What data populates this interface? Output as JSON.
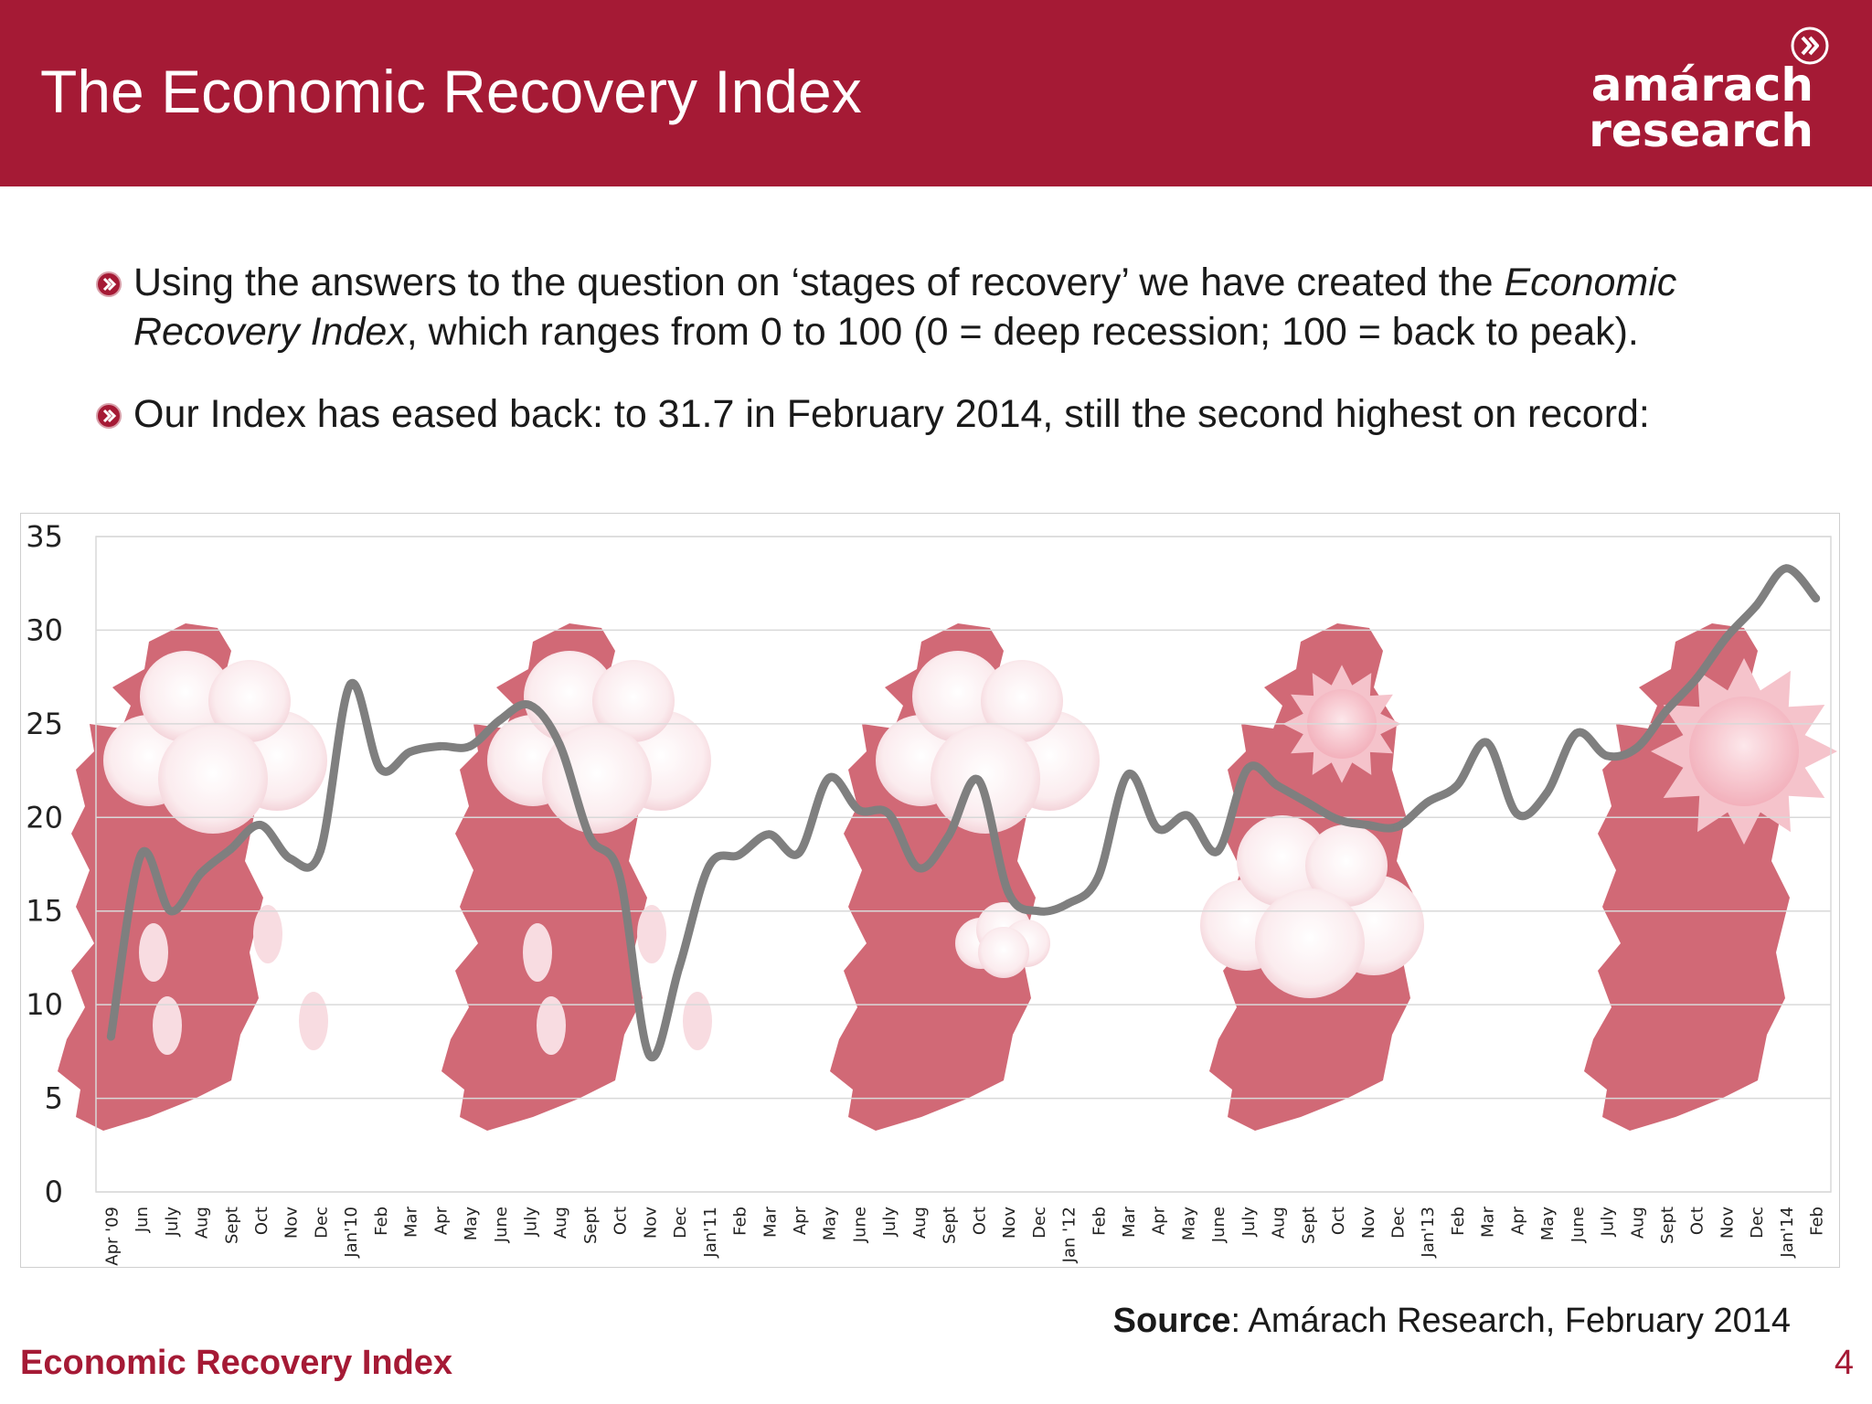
{
  "slide": {
    "title": "The Economic Recovery Index",
    "logo_line1": "amárach",
    "logo_line2": "research",
    "bullets": [
      {
        "parts": [
          {
            "text": "Using the answers to the question on ‘stages of recovery’ we have created the ",
            "italic": false
          },
          {
            "text": "Economic Recovery Index",
            "italic": true
          },
          {
            "text": ", which ranges from 0 to 100 (0 = deep recession; 100 = back to peak).",
            "italic": false
          }
        ]
      },
      {
        "parts": [
          {
            "text": "Our Index has eased back: to 31.7 in February 2014, still the second highest on record:",
            "italic": false
          }
        ]
      }
    ],
    "source_label": "Source",
    "source_text": ": Amárach Research, February 2014",
    "footer_title": "Economic Recovery Index",
    "page_number": "4"
  },
  "colors": {
    "brand": "#a51a35",
    "line": "#7f7f7f",
    "map": "#c9505f",
    "grid": "#d9d9d9"
  },
  "chart_data": {
    "type": "line",
    "title": "",
    "xlabel": "",
    "ylabel": "",
    "ylim": [
      0,
      35
    ],
    "yticks": [
      0,
      5,
      10,
      15,
      20,
      25,
      30,
      35
    ],
    "grid": true,
    "legend": "none",
    "background_icons": [
      "ireland-rain-cloud",
      "ireland-rain-cloud",
      "ireland-cloud",
      "ireland-sun-cloud",
      "ireland-sun"
    ],
    "categories": [
      "Apr '09",
      "Jun",
      "July",
      "Aug",
      "Sept",
      "Oct",
      "Nov",
      "Dec",
      "Jan'10",
      "Feb",
      "Mar",
      "Apr",
      "May",
      "June",
      "July",
      "Aug",
      "Sept",
      "Oct",
      "Nov",
      "Dec",
      "Jan'11",
      "Feb",
      "Mar",
      "Apr",
      "May",
      "June",
      "July",
      "Aug",
      "Sept",
      "Oct",
      "Nov",
      "Dec",
      "Jan '12",
      "Feb",
      "Mar",
      "Apr",
      "May",
      "June",
      "July",
      "Aug",
      "Sept",
      "Oct",
      "Nov",
      "Dec",
      "Jan'13",
      "Feb",
      "Mar",
      "Apr",
      "May",
      "June",
      "July",
      "Aug",
      "Sept",
      "Oct",
      "Nov",
      "Dec",
      "Jan'14",
      "Feb"
    ],
    "series": [
      {
        "values": [
          8.3,
          18.0,
          15.0,
          17.0,
          18.3,
          19.6,
          17.8,
          18.2,
          27.1,
          22.6,
          23.5,
          23.8,
          23.8,
          25.2,
          26.0,
          23.9,
          19.0,
          16.9,
          7.3,
          12.0,
          17.4,
          18.0,
          19.1,
          18.1,
          22.1,
          20.4,
          20.2,
          17.3,
          19.0,
          22.0,
          16.0,
          15.0,
          15.4,
          16.8,
          22.3,
          19.4,
          20.1,
          18.2,
          22.6,
          21.7,
          20.8,
          19.9,
          19.6,
          19.5,
          20.8,
          21.7,
          24.0,
          20.2,
          21.3,
          24.5,
          23.3,
          23.7,
          25.7,
          27.4,
          29.6,
          31.3,
          33.3,
          31.7
        ]
      }
    ]
  }
}
